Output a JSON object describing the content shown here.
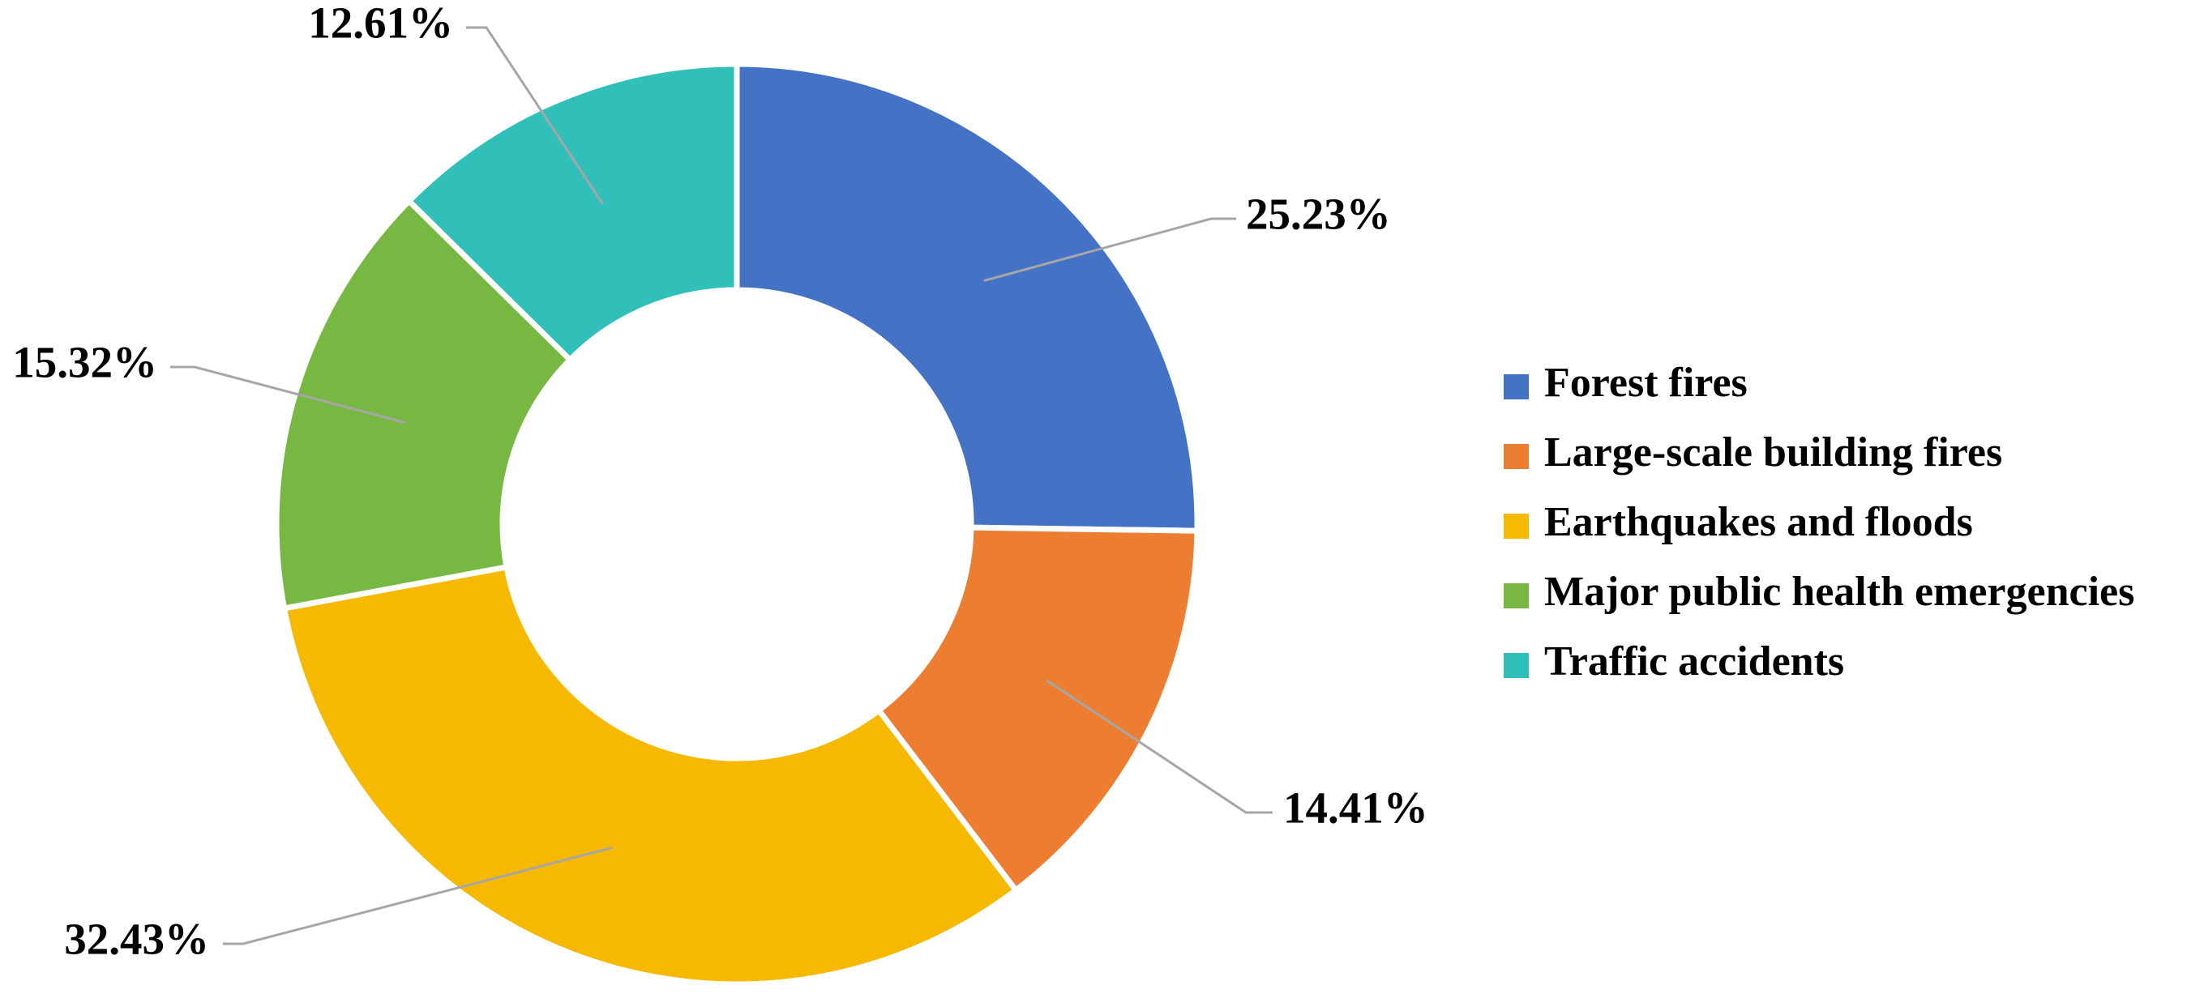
{
  "chart_data": {
    "type": "donut",
    "categories": [
      "Forest fires",
      "Large-scale building fires",
      "Earthquakes and floods",
      "Major public health emergencies",
      "Traffic accidents"
    ],
    "values": [
      25.23,
      14.41,
      32.43,
      15.32,
      12.61
    ],
    "value_labels": [
      "25.23%",
      "14.41%",
      "32.43%",
      "15.32%",
      "12.61%"
    ],
    "colors": [
      "#4472c4",
      "#ed7d31",
      "#f7b900",
      "#77b843",
      "#31bfb9"
    ],
    "legend": "right"
  }
}
